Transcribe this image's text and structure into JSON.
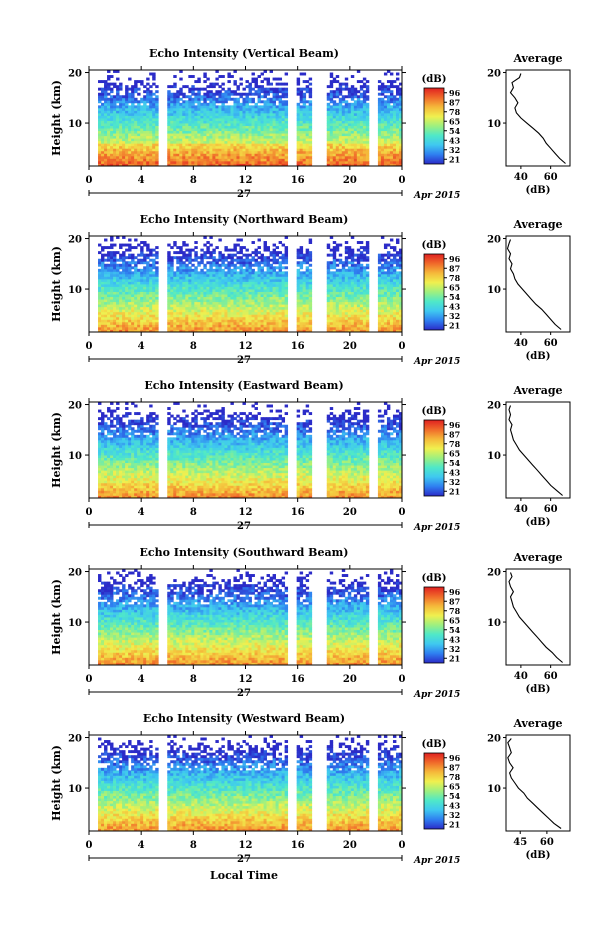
{
  "figure": {
    "xlabel": "Local Time",
    "day_label": "27",
    "month_label": "Apr 2015",
    "colorbar_unit": "(dB)",
    "colorbar_ticks": [
      "96",
      "87",
      "78",
      "65",
      "54",
      "43",
      "32",
      "21"
    ],
    "avg_title": "Average",
    "avg_xlabel": "(dB)",
    "heat_ylabel": "Height (km)",
    "time_ticks": [
      "0",
      "4",
      "8",
      "12",
      "16",
      "20",
      "0"
    ],
    "height_ticks": [
      "20",
      "10"
    ],
    "colormap": [
      "#2b2bc8",
      "#2f7ff0",
      "#3fc8f0",
      "#4fe8c8",
      "#9ef07f",
      "#f0f04f",
      "#f5b83a",
      "#f06a2a",
      "#e02020"
    ]
  },
  "chart_data": [
    {
      "type": "heatmap",
      "title": "Echo Intensity (Vertical Beam)",
      "xlabel": "Local Time",
      "ylabel": "Height (km)",
      "xlim": [
        0,
        24
      ],
      "ylim": [
        1.5,
        20.5
      ],
      "zlim": [
        21,
        96
      ],
      "zunit": "dB",
      "gaps_hours": [
        [
          5.4,
          6.0
        ],
        [
          15.3,
          16.0
        ],
        [
          17.1,
          18.2
        ],
        [
          21.5,
          22.1
        ]
      ],
      "avg_profile": {
        "xticks": [
          40,
          60
        ],
        "xlim": [
          30,
          73
        ],
        "points": [
          [
            70,
            2
          ],
          [
            66,
            3
          ],
          [
            63,
            4
          ],
          [
            60,
            5
          ],
          [
            57,
            6
          ],
          [
            55,
            7
          ],
          [
            52,
            8
          ],
          [
            48,
            9
          ],
          [
            44,
            10
          ],
          [
            40,
            11
          ],
          [
            37,
            12
          ],
          [
            36,
            13
          ],
          [
            38,
            14
          ],
          [
            36,
            15
          ],
          [
            33,
            16
          ],
          [
            35,
            17
          ],
          [
            34,
            18
          ],
          [
            39,
            19
          ],
          [
            40,
            19.8
          ]
        ]
      }
    },
    {
      "type": "heatmap",
      "title": "Echo Intensity (Northward Beam)",
      "xlabel": "Local Time",
      "ylabel": "Height (km)",
      "xlim": [
        0,
        24
      ],
      "ylim": [
        1.5,
        20.5
      ],
      "zlim": [
        21,
        96
      ],
      "zunit": "dB",
      "gaps_hours": [
        [
          5.4,
          6.0
        ],
        [
          15.3,
          16.0
        ],
        [
          17.1,
          18.2
        ],
        [
          21.5,
          22.1
        ]
      ],
      "avg_profile": {
        "xticks": [
          40,
          60
        ],
        "xlim": [
          30,
          73
        ],
        "points": [
          [
            67,
            2
          ],
          [
            63,
            3
          ],
          [
            60,
            4
          ],
          [
            57,
            5
          ],
          [
            54,
            6
          ],
          [
            50,
            7
          ],
          [
            47,
            8
          ],
          [
            44,
            9
          ],
          [
            41,
            10
          ],
          [
            38,
            11
          ],
          [
            36,
            12
          ],
          [
            35,
            13
          ],
          [
            33,
            14
          ],
          [
            34,
            15
          ],
          [
            32,
            16
          ],
          [
            33,
            17
          ],
          [
            31,
            18
          ],
          [
            32,
            19
          ],
          [
            33,
            19.8
          ]
        ]
      }
    },
    {
      "type": "heatmap",
      "title": "Echo Intensity (Eastward Beam)",
      "xlabel": "Local Time",
      "ylabel": "Height (km)",
      "xlim": [
        0,
        24
      ],
      "ylim": [
        1.5,
        20.5
      ],
      "zlim": [
        21,
        96
      ],
      "zunit": "dB",
      "gaps_hours": [
        [
          5.4,
          6.0
        ],
        [
          15.3,
          16.0
        ],
        [
          17.1,
          18.2
        ],
        [
          21.5,
          22.1
        ]
      ],
      "avg_profile": {
        "xticks": [
          40,
          60
        ],
        "xlim": [
          30,
          73
        ],
        "points": [
          [
            68,
            2
          ],
          [
            64,
            3
          ],
          [
            60,
            4
          ],
          [
            57,
            5
          ],
          [
            54,
            6
          ],
          [
            51,
            7
          ],
          [
            48,
            8
          ],
          [
            45,
            9
          ],
          [
            42,
            10
          ],
          [
            39,
            11
          ],
          [
            37,
            12
          ],
          [
            35,
            13
          ],
          [
            34,
            14
          ],
          [
            33,
            15
          ],
          [
            34,
            16
          ],
          [
            32,
            17
          ],
          [
            33,
            18
          ],
          [
            32,
            19
          ],
          [
            33,
            19.8
          ]
        ]
      }
    },
    {
      "type": "heatmap",
      "title": "Echo Intensity (Southward Beam)",
      "xlabel": "Local Time",
      "ylabel": "Height (km)",
      "xlim": [
        0,
        24
      ],
      "ylim": [
        1.5,
        20.5
      ],
      "zlim": [
        21,
        96
      ],
      "zunit": "dB",
      "gaps_hours": [
        [
          5.4,
          6.0
        ],
        [
          15.3,
          16.0
        ],
        [
          17.1,
          18.2
        ],
        [
          21.5,
          22.1
        ]
      ],
      "avg_profile": {
        "xticks": [
          40,
          60
        ],
        "xlim": [
          30,
          73
        ],
        "points": [
          [
            68,
            2
          ],
          [
            64,
            3
          ],
          [
            61,
            4
          ],
          [
            57,
            5
          ],
          [
            54,
            6
          ],
          [
            51,
            7
          ],
          [
            48,
            8
          ],
          [
            45,
            9
          ],
          [
            42,
            10
          ],
          [
            39,
            11
          ],
          [
            37,
            12
          ],
          [
            35,
            13
          ],
          [
            34,
            14
          ],
          [
            33,
            15
          ],
          [
            35,
            16
          ],
          [
            33,
            17
          ],
          [
            32,
            18
          ],
          [
            34,
            19
          ],
          [
            33,
            19.8
          ]
        ]
      }
    },
    {
      "type": "heatmap",
      "title": "Echo Intensity (Westward Beam)",
      "xlabel": "Local Time",
      "ylabel": "Height (km)",
      "xlim": [
        0,
        24
      ],
      "ylim": [
        1.5,
        20.5
      ],
      "zlim": [
        21,
        96
      ],
      "zunit": "dB",
      "gaps_hours": [
        [
          5.4,
          6.0
        ],
        [
          15.3,
          16.0
        ],
        [
          17.1,
          18.2
        ],
        [
          21.5,
          22.1
        ]
      ],
      "avg_profile": {
        "xticks": [
          45,
          60
        ],
        "xlim": [
          37,
          73
        ],
        "points": [
          [
            68,
            2
          ],
          [
            64,
            3
          ],
          [
            61,
            4
          ],
          [
            58,
            5
          ],
          [
            55,
            6
          ],
          [
            52,
            7
          ],
          [
            49,
            8
          ],
          [
            47,
            9
          ],
          [
            44,
            10
          ],
          [
            42,
            11
          ],
          [
            40,
            12
          ],
          [
            39,
            13
          ],
          [
            41,
            14
          ],
          [
            39,
            15
          ],
          [
            38,
            16
          ],
          [
            40,
            17
          ],
          [
            39,
            18
          ],
          [
            38,
            19
          ],
          [
            40,
            19.8
          ]
        ]
      }
    }
  ]
}
